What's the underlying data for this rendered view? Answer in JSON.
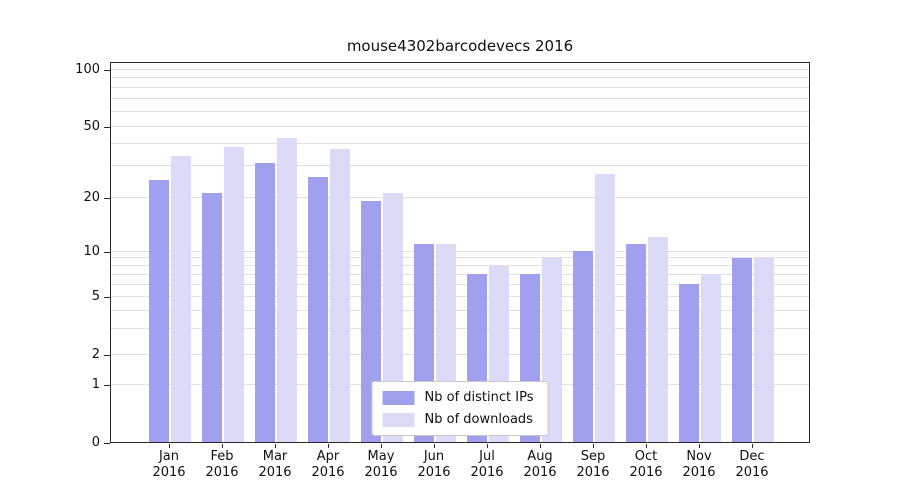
{
  "chart_data": {
    "type": "bar",
    "title": "mouse4302barcodevecs 2016",
    "categories": [
      "Jan",
      "Feb",
      "Mar",
      "Apr",
      "May",
      "Jun",
      "Jul",
      "Aug",
      "Sep",
      "Oct",
      "Nov",
      "Dec"
    ],
    "year": "2016",
    "series": [
      {
        "name": "Nb of distinct IPs",
        "color": "#a0a0ee",
        "values": [
          25,
          21,
          31,
          26,
          19,
          11,
          7,
          7,
          10,
          11,
          6,
          9
        ]
      },
      {
        "name": "Nb of downloads",
        "color": "#dbdbf8",
        "values": [
          34,
          38,
          43,
          37,
          21,
          11,
          8,
          9,
          27,
          12,
          7,
          9
        ]
      }
    ],
    "y_ticks": [
      0,
      1,
      2,
      5,
      10,
      20,
      50,
      100
    ],
    "minor_gridlines": [
      1,
      2,
      3,
      4,
      5,
      6,
      7,
      8,
      9,
      10,
      20,
      30,
      40,
      50,
      60,
      70,
      80,
      90,
      100
    ],
    "scale": "log-like",
    "ylim": [
      0,
      100
    ],
    "grid": true,
    "legend_position": "bottom-center"
  }
}
